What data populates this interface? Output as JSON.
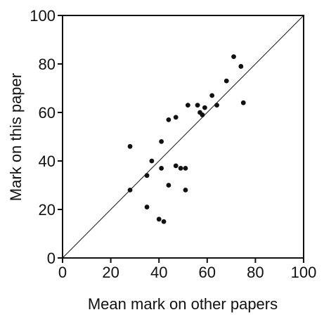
{
  "chart_data": {
    "type": "scatter",
    "title": "",
    "xlabel": "Mean mark on other papers",
    "ylabel": "Mark on this paper",
    "xlim": [
      0,
      100
    ],
    "ylim": [
      0,
      100
    ],
    "x_ticks": [
      0,
      20,
      40,
      60,
      80,
      100
    ],
    "y_ticks": [
      0,
      20,
      40,
      60,
      80,
      100
    ],
    "x_tick_labels": [
      "0",
      "20",
      "40",
      "60",
      "80",
      "100"
    ],
    "y_tick_labels": [
      "0",
      "20",
      "40",
      "60",
      "80",
      "100"
    ],
    "grid": false,
    "reference_line": "y = x",
    "series": [
      {
        "points": [
          {
            "x": 28,
            "y": 28
          },
          {
            "x": 28,
            "y": 46
          },
          {
            "x": 35,
            "y": 34
          },
          {
            "x": 35,
            "y": 21
          },
          {
            "x": 37,
            "y": 40
          },
          {
            "x": 40,
            "y": 16
          },
          {
            "x": 41,
            "y": 37
          },
          {
            "x": 41,
            "y": 48
          },
          {
            "x": 42,
            "y": 15
          },
          {
            "x": 44,
            "y": 57
          },
          {
            "x": 44,
            "y": 30
          },
          {
            "x": 47,
            "y": 58
          },
          {
            "x": 47,
            "y": 38
          },
          {
            "x": 49,
            "y": 37
          },
          {
            "x": 51,
            "y": 28
          },
          {
            "x": 51,
            "y": 37
          },
          {
            "x": 52,
            "y": 63
          },
          {
            "x": 56,
            "y": 63
          },
          {
            "x": 57,
            "y": 60
          },
          {
            "x": 58,
            "y": 59
          },
          {
            "x": 59,
            "y": 62
          },
          {
            "x": 62,
            "y": 67
          },
          {
            "x": 64,
            "y": 63
          },
          {
            "x": 68,
            "y": 73
          },
          {
            "x": 71,
            "y": 83
          },
          {
            "x": 74,
            "y": 79
          },
          {
            "x": 75,
            "y": 64
          }
        ]
      }
    ]
  }
}
